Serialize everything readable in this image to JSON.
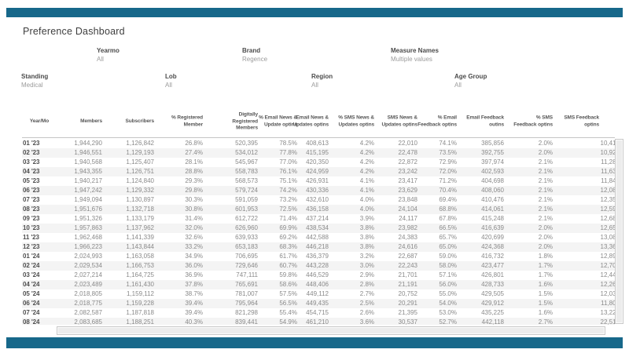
{
  "title": "Preference Dashboard",
  "accent_color": "#17688a",
  "filters": [
    {
      "label": "Yearmo",
      "value": "All"
    },
    {
      "label": "Brand",
      "value": "Regence"
    },
    {
      "label": "Measure Names",
      "value": "Multiple values"
    },
    {
      "label": "Standing",
      "value": "Medical"
    },
    {
      "label": "Lob",
      "value": "All"
    },
    {
      "label": "Region",
      "value": "All"
    },
    {
      "label": "Age Group",
      "value": "All"
    }
  ],
  "table": {
    "columns": [
      "Year/Mo",
      "Members",
      "Subscribers",
      "% Registered\nMember",
      "Digitally\nRegistered\nMembers",
      "% Email News &\nUpdate optins",
      "Email News &\nUpdates optins",
      "% SMS News &\nUpdates optins",
      "SMS News &\nUpdates optins",
      "% Email\nFeedback optins",
      "Email Feedback\noutins",
      "% SMS\nFeedback optins",
      "SMS Feedback\noptins"
    ],
    "rows": [
      {
        "label": "01 '23",
        "values": [
          "1,944,290",
          "1,126,842",
          "26.8%",
          "520,395",
          "78.5%",
          "408,613",
          "4.2%",
          "22,010",
          "74.1%",
          "385,856",
          "2.0%",
          "10,410"
        ]
      },
      {
        "label": "02 '23",
        "values": [
          "1,946,551",
          "1,129,193",
          "27.4%",
          "534,012",
          "77.8%",
          "415,195",
          "4.2%",
          "22,478",
          "73.5%",
          "392,755",
          "2.0%",
          "10,922"
        ]
      },
      {
        "label": "03 '23",
        "values": [
          "1,940,568",
          "1,125,407",
          "28.1%",
          "545,967",
          "77.0%",
          "420,350",
          "4.2%",
          "22,872",
          "72.9%",
          "397,974",
          "2.1%",
          "11,283"
        ]
      },
      {
        "label": "04 '23",
        "values": [
          "1,943,355",
          "1,126,751",
          "28.8%",
          "558,783",
          "76.1%",
          "424,959",
          "4.2%",
          "23,242",
          "72.0%",
          "402,593",
          "2.1%",
          "11,636"
        ]
      },
      {
        "label": "05 '23",
        "values": [
          "1,940,217",
          "1,124,840",
          "29.3%",
          "568,573",
          "75.1%",
          "426,931",
          "4.1%",
          "23,417",
          "71.2%",
          "404,698",
          "2.1%",
          "11,846"
        ]
      },
      {
        "label": "06 '23",
        "values": [
          "1,947,242",
          "1,129,332",
          "29.8%",
          "579,724",
          "74.2%",
          "430,336",
          "4.1%",
          "23,629",
          "70.4%",
          "408,060",
          "2.1%",
          "12,083"
        ]
      },
      {
        "label": "07 '23",
        "values": [
          "1,949,094",
          "1,130,897",
          "30.3%",
          "591,059",
          "73.2%",
          "432,610",
          "4.0%",
          "23,848",
          "69.4%",
          "410,476",
          "2.1%",
          "12,359"
        ]
      },
      {
        "label": "08 '23",
        "values": [
          "1,951,676",
          "1,132,718",
          "30.8%",
          "601,953",
          "72.5%",
          "436,158",
          "4.0%",
          "24,104",
          "68.8%",
          "414,061",
          "2.1%",
          "12,591"
        ]
      },
      {
        "label": "09 '23",
        "values": [
          "1,951,326",
          "1,133,179",
          "31.4%",
          "612,722",
          "71.4%",
          "437,214",
          "3.9%",
          "24,117",
          "67.8%",
          "415,248",
          "2.1%",
          "12,689"
        ]
      },
      {
        "label": "10 '23",
        "values": [
          "1,957,863",
          "1,137,962",
          "32.0%",
          "626,960",
          "69.9%",
          "438,534",
          "3.8%",
          "23,982",
          "66.5%",
          "416,639",
          "2.0%",
          "12,653"
        ]
      },
      {
        "label": "11 '23",
        "values": [
          "1,962,468",
          "1,141,339",
          "32.6%",
          "639,933",
          "69.2%",
          "442,588",
          "3.8%",
          "24,383",
          "65.7%",
          "420,699",
          "2.0%",
          "13,083"
        ]
      },
      {
        "label": "12 '23",
        "values": [
          "1,966,223",
          "1,143,844",
          "33.2%",
          "653,183",
          "68.3%",
          "446,218",
          "3.8%",
          "24,616",
          "65.0%",
          "424,368",
          "2.0%",
          "13,362"
        ]
      },
      {
        "label": "01 '24",
        "values": [
          "2,024,993",
          "1,163,058",
          "34.9%",
          "706,695",
          "61.7%",
          "436,379",
          "3.2%",
          "22,687",
          "59.0%",
          "416,732",
          "1.8%",
          "12,891"
        ]
      },
      {
        "label": "02 '24",
        "values": [
          "2,029,534",
          "1,166,753",
          "36.0%",
          "729,646",
          "60.7%",
          "443,228",
          "3.0%",
          "22,243",
          "58.0%",
          "423,477",
          "1.7%",
          "12,702"
        ]
      },
      {
        "label": "03 '24",
        "values": [
          "2,027,214",
          "1,164,725",
          "36.9%",
          "747,111",
          "59.8%",
          "446,529",
          "2.9%",
          "21,701",
          "57.1%",
          "426,801",
          "1.7%",
          "12,443"
        ]
      },
      {
        "label": "04 '24",
        "values": [
          "2,023,489",
          "1,161,430",
          "37.8%",
          "765,691",
          "58.6%",
          "448,406",
          "2.8%",
          "21,191",
          "56.0%",
          "428,733",
          "1.6%",
          "12,261"
        ]
      },
      {
        "label": "05 '24",
        "values": [
          "2,018,805",
          "1,159,112",
          "38.7%",
          "781,007",
          "57.5%",
          "449,112",
          "2.7%",
          "20,752",
          "55.0%",
          "429,505",
          "1.5%",
          "12,036"
        ]
      },
      {
        "label": "06 '24",
        "values": [
          "2,018,775",
          "1,159,228",
          "39.4%",
          "795,964",
          "56.5%",
          "449,435",
          "2.5%",
          "20,291",
          "54.0%",
          "429,912",
          "1.5%",
          "11,802"
        ]
      },
      {
        "label": "07 '24",
        "values": [
          "2,082,587",
          "1,187,818",
          "39.4%",
          "821,298",
          "55.4%",
          "454,715",
          "2.6%",
          "21,395",
          "53.0%",
          "435,225",
          "1.6%",
          "13,221"
        ]
      },
      {
        "label": "08 '24",
        "values": [
          "2,083,685",
          "1,188,251",
          "40.3%",
          "839,441",
          "54.9%",
          "461,210",
          "3.6%",
          "30,537",
          "52.7%",
          "442,118",
          "2.7%",
          "22,515"
        ]
      }
    ]
  }
}
